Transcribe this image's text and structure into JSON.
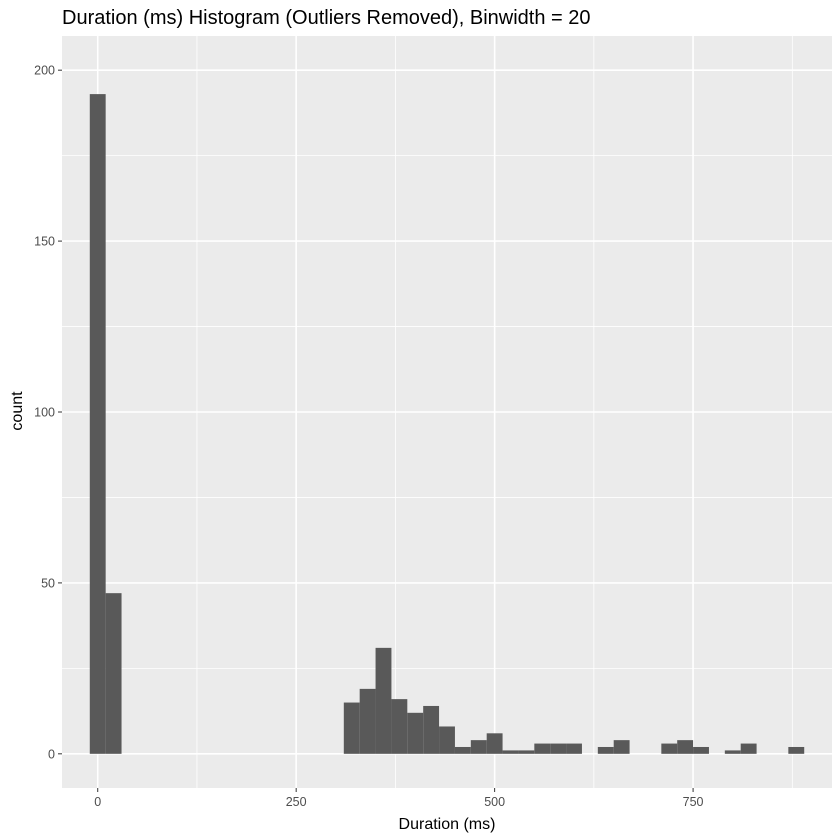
{
  "chart_data": {
    "type": "bar",
    "title": "Duration (ms) Histogram (Outliers Removed), Binwidth = 20",
    "xlabel": "Duration (ms)",
    "ylabel": "count",
    "binwidth": 20,
    "xlim": [
      -45,
      925
    ],
    "ylim": [
      -10,
      210
    ],
    "x_ticks": [
      0,
      250,
      500,
      750
    ],
    "y_ticks": [
      0,
      50,
      100,
      150,
      200
    ],
    "grid": true,
    "legend": "none",
    "colors": {
      "bar": "#595959",
      "panel": "#EBEBEB",
      "grid": "#FFFFFF",
      "text": "#000000",
      "tick_text": "#4D4D4D"
    },
    "bins": [
      {
        "x0": -10,
        "x1": 10,
        "count": 193
      },
      {
        "x0": 10,
        "x1": 30,
        "count": 47
      },
      {
        "x0": 310,
        "x1": 330,
        "count": 15
      },
      {
        "x0": 330,
        "x1": 350,
        "count": 19
      },
      {
        "x0": 350,
        "x1": 370,
        "count": 31
      },
      {
        "x0": 370,
        "x1": 390,
        "count": 16
      },
      {
        "x0": 390,
        "x1": 410,
        "count": 12
      },
      {
        "x0": 410,
        "x1": 430,
        "count": 14
      },
      {
        "x0": 430,
        "x1": 450,
        "count": 8
      },
      {
        "x0": 450,
        "x1": 470,
        "count": 2
      },
      {
        "x0": 470,
        "x1": 490,
        "count": 4
      },
      {
        "x0": 490,
        "x1": 510,
        "count": 6
      },
      {
        "x0": 510,
        "x1": 530,
        "count": 1
      },
      {
        "x0": 530,
        "x1": 550,
        "count": 1
      },
      {
        "x0": 550,
        "x1": 570,
        "count": 3
      },
      {
        "x0": 570,
        "x1": 590,
        "count": 3
      },
      {
        "x0": 590,
        "x1": 610,
        "count": 3
      },
      {
        "x0": 630,
        "x1": 650,
        "count": 2
      },
      {
        "x0": 650,
        "x1": 670,
        "count": 4
      },
      {
        "x0": 710,
        "x1": 730,
        "count": 3
      },
      {
        "x0": 730,
        "x1": 750,
        "count": 4
      },
      {
        "x0": 750,
        "x1": 770,
        "count": 2
      },
      {
        "x0": 790,
        "x1": 810,
        "count": 1
      },
      {
        "x0": 810,
        "x1": 830,
        "count": 3
      },
      {
        "x0": 870,
        "x1": 890,
        "count": 2
      }
    ]
  }
}
